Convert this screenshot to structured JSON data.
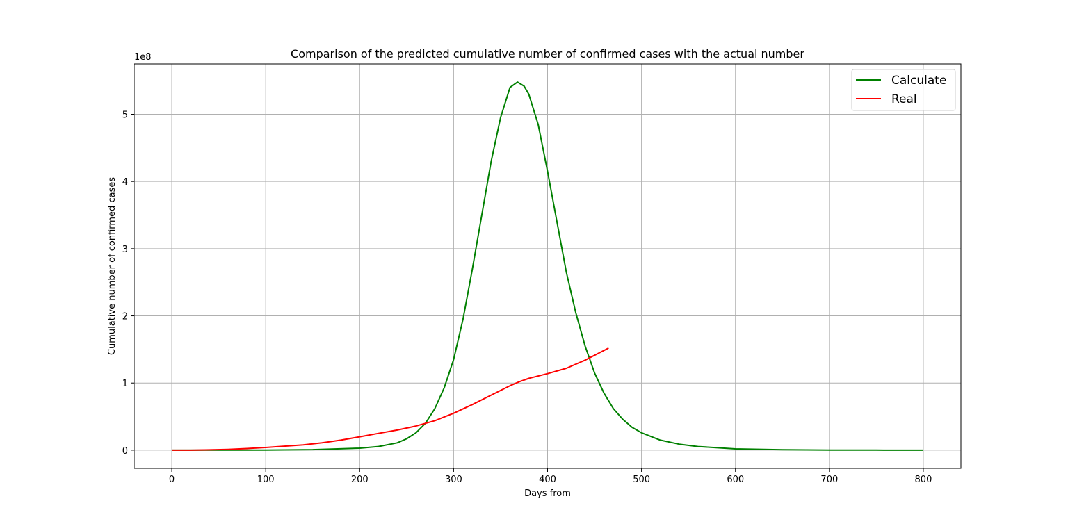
{
  "chart_data": {
    "type": "line",
    "title": "Comparison of the predicted cumulative number of confirmed cases with the actual number",
    "xlabel": "Days from",
    "ylabel": "Cumulative number of confirmed cases",
    "y_offset_text": "1e8",
    "xlim": [
      -40,
      840
    ],
    "ylim": [
      -0.27,
      5.75
    ],
    "x_ticks": [
      0,
      100,
      200,
      300,
      400,
      500,
      600,
      700,
      800
    ],
    "y_ticks": [
      0,
      1,
      2,
      3,
      4,
      5
    ],
    "y_tick_labels": [
      "0",
      "1",
      "2",
      "3",
      "4",
      "5"
    ],
    "y_scale_multiplier": 100000000,
    "grid": true,
    "legend_position": "top-right",
    "series": [
      {
        "name": "Calculate",
        "color": "#008000",
        "x": [
          0,
          100,
          150,
          200,
          220,
          240,
          250,
          260,
          270,
          280,
          290,
          300,
          310,
          320,
          330,
          340,
          350,
          360,
          368,
          375,
          380,
          390,
          400,
          410,
          420,
          430,
          440,
          450,
          460,
          470,
          480,
          490,
          500,
          520,
          540,
          560,
          600,
          650,
          700,
          750,
          800
        ],
        "y": [
          0.0,
          0.002,
          0.008,
          0.03,
          0.055,
          0.11,
          0.17,
          0.26,
          0.4,
          0.62,
          0.93,
          1.35,
          1.95,
          2.7,
          3.5,
          4.3,
          4.95,
          5.4,
          5.48,
          5.42,
          5.3,
          4.85,
          4.15,
          3.4,
          2.65,
          2.05,
          1.55,
          1.15,
          0.85,
          0.62,
          0.46,
          0.34,
          0.26,
          0.15,
          0.09,
          0.055,
          0.02,
          0.007,
          0.002,
          0.001,
          0.0
        ]
      },
      {
        "name": "Real",
        "color": "#ff0000",
        "x": [
          0,
          20,
          40,
          60,
          80,
          100,
          120,
          140,
          160,
          180,
          200,
          220,
          240,
          260,
          280,
          300,
          320,
          340,
          360,
          370,
          380,
          400,
          420,
          440,
          465
        ],
        "y": [
          0.0,
          0.0,
          0.005,
          0.012,
          0.025,
          0.04,
          0.06,
          0.08,
          0.11,
          0.15,
          0.2,
          0.25,
          0.3,
          0.36,
          0.44,
          0.55,
          0.68,
          0.82,
          0.96,
          1.02,
          1.07,
          1.14,
          1.22,
          1.34,
          1.52
        ]
      }
    ]
  }
}
